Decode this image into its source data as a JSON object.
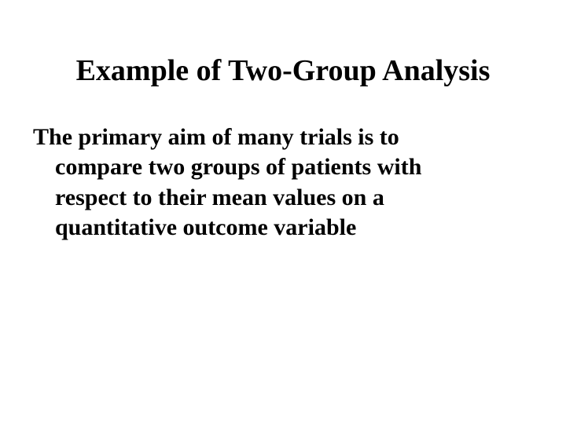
{
  "slide": {
    "title": "Example of Two-Group Analysis",
    "body": "The primary aim of many trials is to compare two groups of patients with respect to their mean values on a quantitative outcome variable",
    "title_fontsize": 38,
    "body_fontsize": 30,
    "title_color": "#000000",
    "body_color": "#000000",
    "background_color": "#ffffff",
    "font_family": "Times New Roman",
    "title_weight": "bold",
    "body_weight": "bold"
  }
}
